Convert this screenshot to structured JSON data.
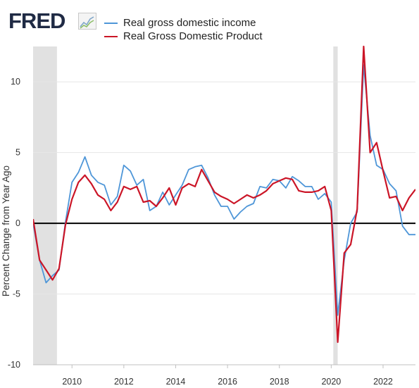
{
  "logo": {
    "text": "FRED",
    "icon": "trend-chart-icon"
  },
  "colors": {
    "gdi": "#4e96d8",
    "gdp": "#cb1527",
    "recession": "#e1e1e1",
    "zero_line": "#000000",
    "grid": "#e6e6e6"
  },
  "chart_data": {
    "type": "line",
    "title": "",
    "xlabel": "",
    "ylabel": "Percent Change from Year Ago",
    "xlim": [
      2008.5,
      2023.25
    ],
    "ylim": [
      -10,
      12.5
    ],
    "x_ticks": [
      2010,
      2012,
      2014,
      2016,
      2018,
      2020,
      2022
    ],
    "x_tick_labels": [
      "2010",
      "2012",
      "2014",
      "2016",
      "2018",
      "2020",
      "2022"
    ],
    "y_ticks": [
      -10,
      -5,
      0,
      5,
      10
    ],
    "y_tick_labels": [
      "-10",
      "-5",
      "0",
      "5",
      "10"
    ],
    "grid": true,
    "legend_position": "top",
    "zero_line": true,
    "recessions": [
      {
        "start": 2008.5,
        "end": 2009.42
      },
      {
        "start": 2020.08,
        "end": 2020.25
      }
    ],
    "series": [
      {
        "name": "Real gross domestic income",
        "color": "#4e96d8",
        "x": [
          2008.5,
          2008.75,
          2009.0,
          2009.25,
          2009.5,
          2009.75,
          2010.0,
          2010.25,
          2010.5,
          2010.75,
          2011.0,
          2011.25,
          2011.5,
          2011.75,
          2012.0,
          2012.25,
          2012.5,
          2012.75,
          2013.0,
          2013.25,
          2013.5,
          2013.75,
          2014.0,
          2014.25,
          2014.5,
          2014.75,
          2015.0,
          2015.25,
          2015.5,
          2015.75,
          2016.0,
          2016.25,
          2016.5,
          2016.75,
          2017.0,
          2017.25,
          2017.5,
          2017.75,
          2018.0,
          2018.25,
          2018.5,
          2018.75,
          2019.0,
          2019.25,
          2019.5,
          2019.75,
          2020.0,
          2020.25,
          2020.5,
          2020.75,
          2021.0,
          2021.25,
          2021.5,
          2021.75,
          2022.0,
          2022.25,
          2022.5,
          2022.75,
          2023.0,
          2023.25
        ],
        "values": [
          0.0,
          -2.6,
          -4.2,
          -3.7,
          -3.3,
          0.1,
          2.9,
          3.6,
          4.7,
          3.4,
          2.9,
          2.7,
          1.3,
          1.9,
          4.1,
          3.7,
          2.7,
          3.1,
          0.9,
          1.2,
          2.2,
          1.3,
          2.0,
          2.7,
          3.8,
          4.0,
          4.1,
          3.2,
          2.0,
          1.2,
          1.2,
          0.3,
          0.8,
          1.2,
          1.4,
          2.6,
          2.5,
          3.1,
          3.0,
          2.5,
          3.3,
          3.0,
          2.6,
          2.6,
          1.7,
          2.1,
          1.5,
          -6.5,
          -2.6,
          0.0,
          0.8,
          11.2,
          6.2,
          4.1,
          3.8,
          2.8,
          2.3,
          -0.2,
          -0.8,
          -0.8
        ]
      },
      {
        "name": "Real Gross Domestic Product",
        "color": "#cb1527",
        "x": [
          2008.5,
          2008.75,
          2009.0,
          2009.25,
          2009.5,
          2009.75,
          2010.0,
          2010.25,
          2010.5,
          2010.75,
          2011.0,
          2011.25,
          2011.5,
          2011.75,
          2012.0,
          2012.25,
          2012.5,
          2012.75,
          2013.0,
          2013.25,
          2013.5,
          2013.75,
          2014.0,
          2014.25,
          2014.5,
          2014.75,
          2015.0,
          2015.25,
          2015.5,
          2015.75,
          2016.0,
          2016.25,
          2016.5,
          2016.75,
          2017.0,
          2017.25,
          2017.5,
          2017.75,
          2018.0,
          2018.25,
          2018.5,
          2018.75,
          2019.0,
          2019.25,
          2019.5,
          2019.75,
          2020.0,
          2020.25,
          2020.5,
          2020.75,
          2021.0,
          2021.25,
          2021.5,
          2021.75,
          2022.0,
          2022.25,
          2022.5,
          2022.75,
          2023.0,
          2023.25
        ],
        "values": [
          0.3,
          -2.6,
          -3.3,
          -4.0,
          -3.2,
          -0.1,
          1.7,
          2.9,
          3.4,
          2.8,
          2.0,
          1.7,
          0.9,
          1.5,
          2.6,
          2.4,
          2.6,
          1.5,
          1.6,
          1.2,
          1.8,
          2.5,
          1.3,
          2.5,
          2.8,
          2.6,
          3.8,
          3.0,
          2.2,
          1.9,
          1.7,
          1.4,
          1.7,
          2.0,
          1.8,
          2.0,
          2.3,
          2.8,
          3.0,
          3.2,
          3.1,
          2.3,
          2.2,
          2.2,
          2.3,
          2.6,
          0.9,
          -8.4,
          -2.1,
          -1.5,
          1.0,
          12.5,
          5.0,
          5.7,
          3.7,
          1.8,
          1.9,
          0.9,
          1.8,
          2.4
        ]
      }
    ]
  }
}
